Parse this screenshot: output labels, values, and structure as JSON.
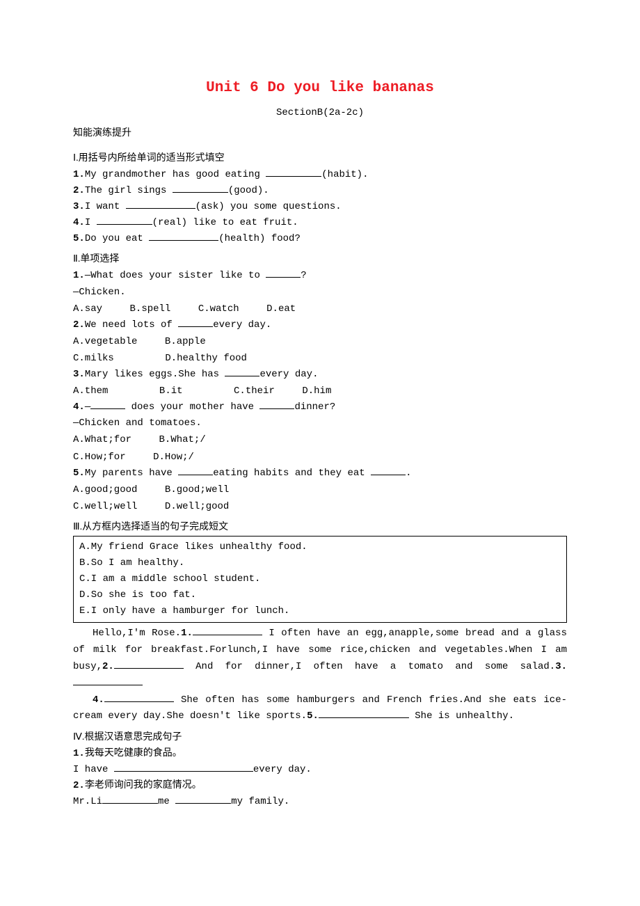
{
  "title": {
    "text": "Unit 6 Do you like bananas",
    "color": "#ed1c24"
  },
  "subtitle": "SectionB(2a-2c)",
  "section_label": "知能演练提升",
  "sec1": {
    "heading": "Ⅰ.用括号内所给单词的适当形式填空",
    "items": [
      {
        "num": "1.",
        "before": "My grandmother has good eating ",
        "after": "(habit)."
      },
      {
        "num": "2.",
        "before": "The girl sings ",
        "after": "(good)."
      },
      {
        "num": "3.",
        "before": "I want ",
        "after": "(ask) you some questions."
      },
      {
        "num": "4.",
        "before": "I ",
        "after": "(real) like to eat fruit."
      },
      {
        "num": "5.",
        "before": "Do you eat ",
        "after": "(health) food?"
      }
    ]
  },
  "sec2": {
    "heading": "Ⅱ.单项选择",
    "q1": {
      "num": "1.",
      "line1_before": "—What does your sister like to ",
      "line1_after": "?",
      "line2": "—Chicken.",
      "opts": {
        "a": "A.say",
        "b": "B.spell",
        "c": "C.watch",
        "d": "D.eat"
      }
    },
    "q2": {
      "num": "2.",
      "line1_before": "We need lots of ",
      "line1_after": "every day.",
      "opts1": {
        "a": "A.vegetable",
        "b": "B.apple"
      },
      "opts2": {
        "c": "C.milks",
        "d": "D.healthy food"
      }
    },
    "q3": {
      "num": "3.",
      "line1_before": "Mary likes eggs.She has ",
      "line1_after": "every day.",
      "opts": {
        "a": "A.them",
        "b": "B.it",
        "c": "C.their",
        "d": "D.him"
      }
    },
    "q4": {
      "num": "4.",
      "line1_before": "—",
      "line1_mid": " does your mother have ",
      "line1_after": "dinner?",
      "line2": "—Chicken and tomatoes.",
      "opts1": {
        "a": "A.What;for",
        "b": "B.What;/"
      },
      "opts2": {
        "c": "C.How;for",
        "d": "D.How;/"
      }
    },
    "q5": {
      "num": "5.",
      "line1_before": "My parents have ",
      "line1_mid": "eating habits and they eat ",
      "line1_after": ".",
      "opts1": {
        "a": "A.good;good",
        "b": "B.good;well"
      },
      "opts2": {
        "c": "C.well;well",
        "d": "D.well;good"
      }
    }
  },
  "sec3": {
    "heading": "Ⅲ.从方框内选择适当的句子完成短文",
    "box": [
      "A.My friend Grace likes unhealthy food.",
      "B.So I am healthy.",
      "C.I am a middle school student.",
      "D.So she is too fat.",
      "E.I only have a hamburger for lunch."
    ],
    "p1a": "Hello,I'm Rose.",
    "p1_num1": "1.",
    "p1b": " I often have an egg,anapple,some bread and a glass of milk for breakfast.Forlunch,I have some rice,chicken and vegetables.When I am busy,",
    "p1_num2": "2.",
    "p1c": " And for dinner,I often have a tomato and some salad.",
    "p1_num3": "3.",
    "p2_num4": "4.",
    "p2a": " She often has some hamburgers and French fries.And she eats ice-cream every day.She doesn't like sports.",
    "p2_num5": "5.",
    "p2b": " She is unhealthy."
  },
  "sec4": {
    "heading": "Ⅳ.根据汉语意思完成句子",
    "q1": {
      "num": "1.",
      "cn": "我每天吃健康的食品。",
      "en_before": "I have ",
      "en_after": "every day."
    },
    "q2": {
      "num": "2.",
      "cn": "李老师询问我的家庭情况。",
      "en_before": "Mr.Li",
      "en_mid": "me ",
      "en_after": "my family."
    }
  }
}
